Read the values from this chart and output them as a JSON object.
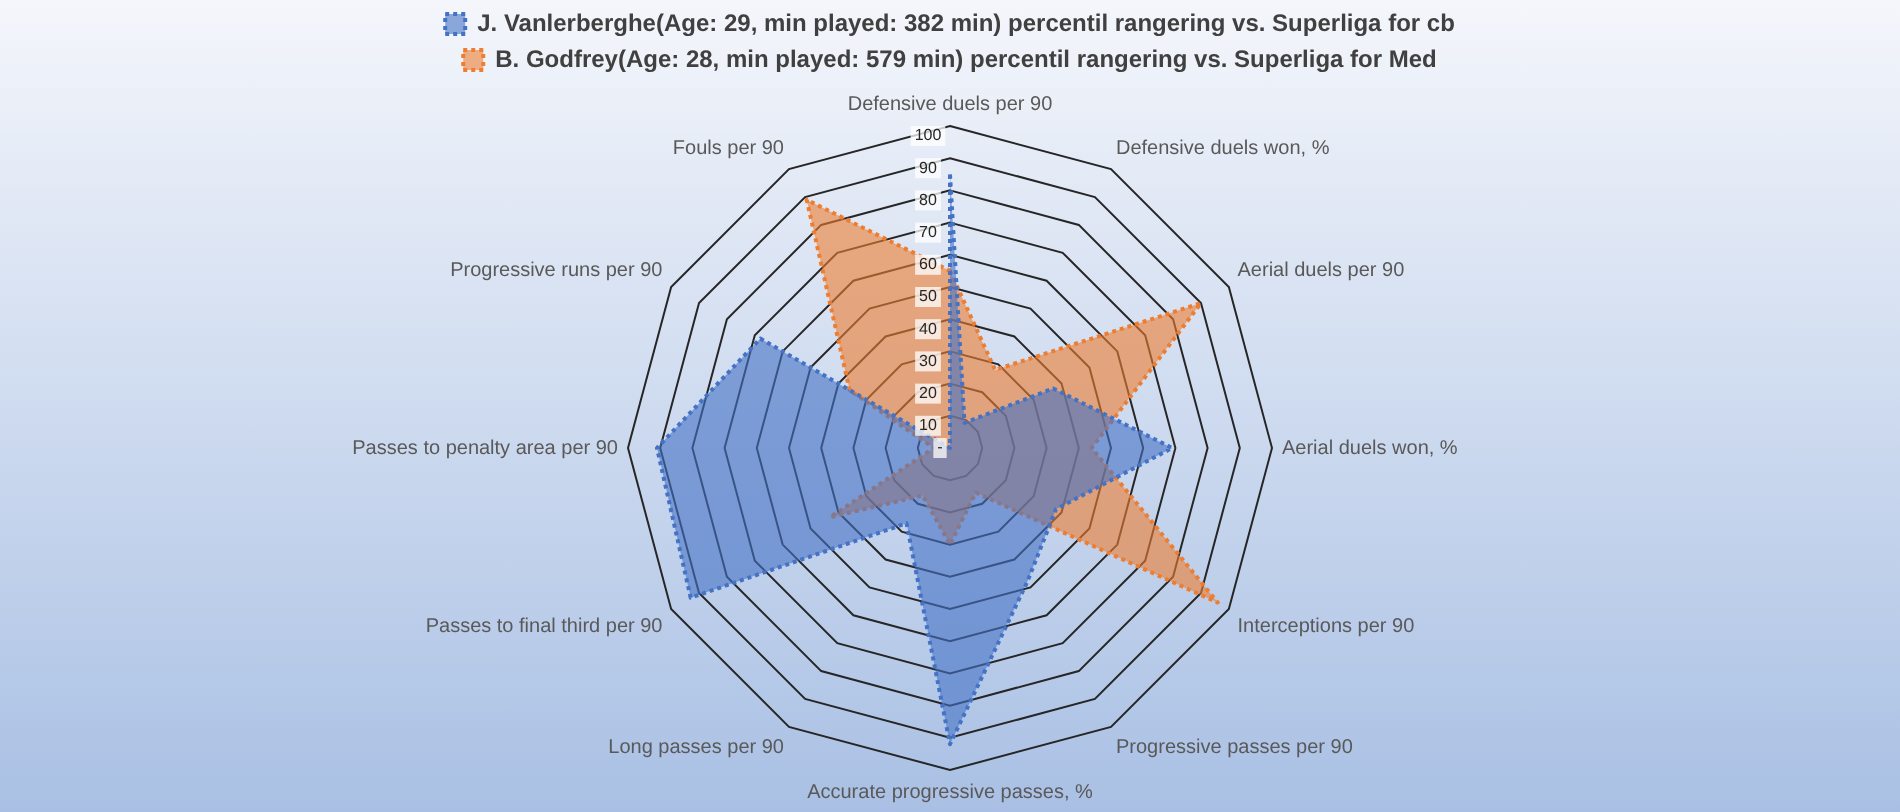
{
  "chart_data": {
    "type": "radar",
    "categories": [
      "Defensive duels per 90",
      "Defensive duels won, %",
      "Aerial duels per 90",
      "Aerial duels won, %",
      "Interceptions per 90",
      "Progressive passes per 90",
      "Accurate progressive passes, %",
      "Long passes per 90",
      "Passes to final third per 90",
      "Passes to penalty area per 90",
      "Progressive runs per 90",
      "Fouls per 90"
    ],
    "series": [
      {
        "name": "J. Vanlerberghe(Age: 29, min played: 382 min) percentil rangering vs. Superliga for cb",
        "color": "#4472c4",
        "values": [
          85,
          9,
          37,
          69,
          38,
          48,
          92,
          27,
          93,
          91,
          68,
          0
        ]
      },
      {
        "name": "B. Godfrey(Age: 28, min played: 579 min) percentil rangering vs. Superliga for Med",
        "color": "#ed7d31",
        "values": [
          55,
          28,
          90,
          44,
          96,
          16,
          30,
          17,
          43,
          5,
          36,
          89
        ]
      }
    ],
    "ylim": [
      0,
      100
    ],
    "yticks": [
      {
        "value": 0,
        "label": "-"
      },
      10,
      20,
      30,
      40,
      50,
      60,
      70,
      80,
      90,
      100
    ],
    "grid": true,
    "legend": "top",
    "marker": "none",
    "line_style": "dotted"
  }
}
